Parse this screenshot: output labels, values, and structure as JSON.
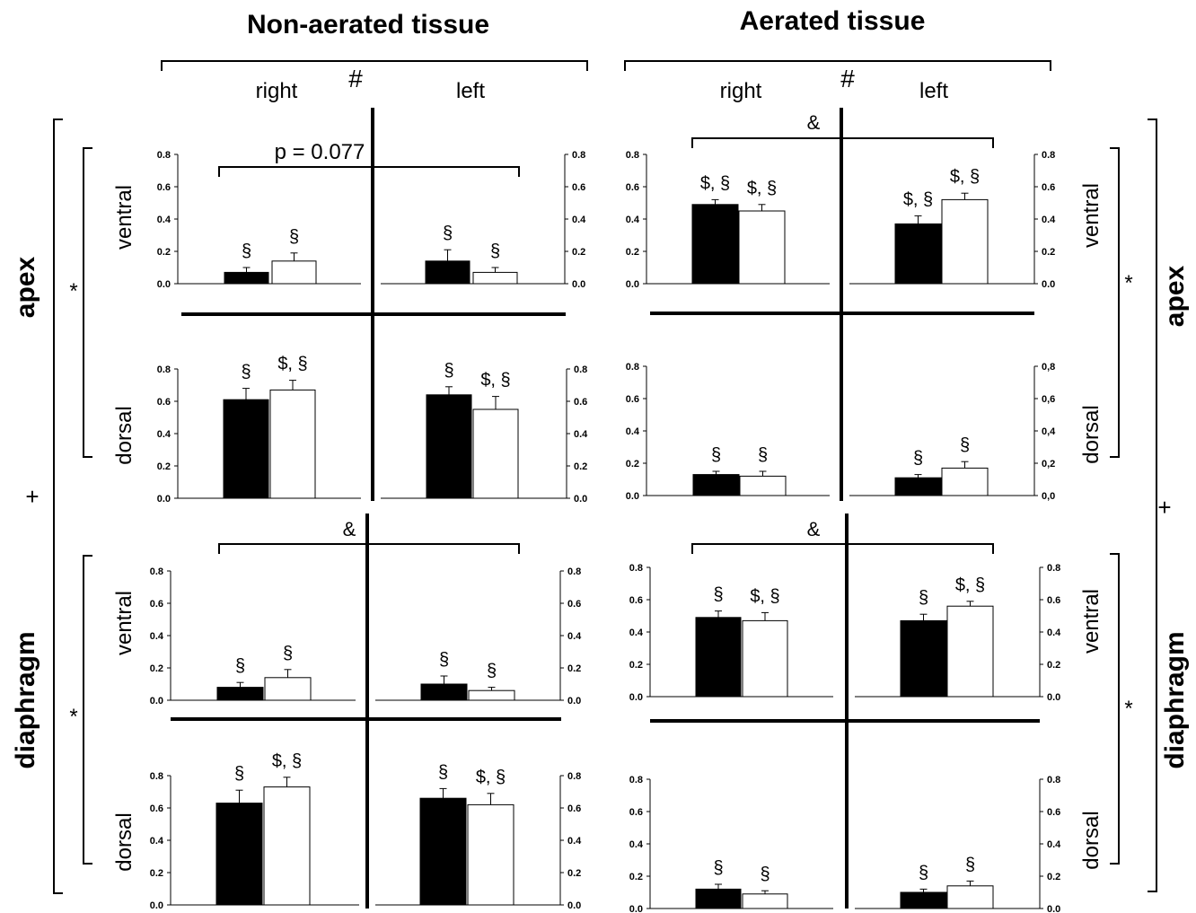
{
  "chart_data": {
    "type": "bar",
    "headers": {
      "nonaerated": "Non-aerated tissue",
      "aerated": "Aerated tissue",
      "right": "right",
      "left": "left",
      "hash": "#",
      "apex": "apex",
      "diaphragm": "diaphragm",
      "ventral": "ventral",
      "dorsal": "dorsal",
      "star": "*",
      "plus": "+"
    },
    "comparisons": {
      "nonaerated_apex_ventral": "p = 0.077",
      "nonaerated_diaphragm_ventral": "&",
      "aerated_apex_ventral": "&",
      "aerated_diaphragm_ventral": "&"
    },
    "ylim": [
      0,
      0.8
    ],
    "yticks_dot": [
      "0.0",
      "0.2",
      "0.4",
      "0.6",
      "0.8"
    ],
    "yticks_comma": [
      "0,0",
      "0,2",
      "0,4",
      "0,6",
      "0,8"
    ],
    "series_colors": [
      "#000000",
      "#ffffff"
    ],
    "panels": [
      {
        "id": "na-apex-ventral-right",
        "values": [
          0.07,
          0.14
        ],
        "errors": [
          0.03,
          0.05
        ],
        "labels": [
          "§",
          "§"
        ]
      },
      {
        "id": "na-apex-ventral-left",
        "values": [
          0.14,
          0.07
        ],
        "errors": [
          0.07,
          0.03
        ],
        "labels": [
          "§",
          "§"
        ]
      },
      {
        "id": "na-apex-dorsal-right",
        "values": [
          0.61,
          0.67
        ],
        "errors": [
          0.07,
          0.06
        ],
        "labels": [
          "§",
          "$, §"
        ]
      },
      {
        "id": "na-apex-dorsal-left",
        "values": [
          0.64,
          0.55
        ],
        "errors": [
          0.05,
          0.08
        ],
        "labels": [
          "§",
          "$, §"
        ]
      },
      {
        "id": "na-dia-ventral-right",
        "values": [
          0.08,
          0.14
        ],
        "errors": [
          0.03,
          0.05
        ],
        "labels": [
          "§",
          "§"
        ]
      },
      {
        "id": "na-dia-ventral-left",
        "values": [
          0.1,
          0.06
        ],
        "errors": [
          0.05,
          0.02
        ],
        "labels": [
          "§",
          "§"
        ]
      },
      {
        "id": "na-dia-dorsal-right",
        "values": [
          0.63,
          0.73
        ],
        "errors": [
          0.08,
          0.06
        ],
        "labels": [
          "§",
          "$, §"
        ]
      },
      {
        "id": "na-dia-dorsal-left",
        "values": [
          0.66,
          0.62
        ],
        "errors": [
          0.06,
          0.07
        ],
        "labels": [
          "§",
          "$, §"
        ]
      },
      {
        "id": "ae-apex-ventral-right",
        "values": [
          0.49,
          0.45
        ],
        "errors": [
          0.03,
          0.04
        ],
        "labels": [
          "$, §",
          "$, §"
        ]
      },
      {
        "id": "ae-apex-ventral-left",
        "values": [
          0.37,
          0.52
        ],
        "errors": [
          0.05,
          0.04
        ],
        "labels": [
          "$, §",
          "$, §"
        ]
      },
      {
        "id": "ae-apex-dorsal-right",
        "values": [
          0.13,
          0.12
        ],
        "errors": [
          0.02,
          0.03
        ],
        "labels": [
          "§",
          "§"
        ]
      },
      {
        "id": "ae-apex-dorsal-left",
        "values": [
          0.11,
          0.17
        ],
        "errors": [
          0.02,
          0.04
        ],
        "labels": [
          "§",
          "§"
        ]
      },
      {
        "id": "ae-dia-ventral-right",
        "values": [
          0.49,
          0.47
        ],
        "errors": [
          0.04,
          0.05
        ],
        "labels": [
          "§",
          "$, §"
        ]
      },
      {
        "id": "ae-dia-ventral-left",
        "values": [
          0.47,
          0.56
        ],
        "errors": [
          0.04,
          0.03
        ],
        "labels": [
          "§",
          "$, §"
        ]
      },
      {
        "id": "ae-dia-dorsal-right",
        "values": [
          0.12,
          0.09
        ],
        "errors": [
          0.03,
          0.02
        ],
        "labels": [
          "§",
          "§"
        ]
      },
      {
        "id": "ae-dia-dorsal-left",
        "values": [
          0.1,
          0.14
        ],
        "errors": [
          0.02,
          0.03
        ],
        "labels": [
          "§",
          "§"
        ]
      }
    ]
  }
}
